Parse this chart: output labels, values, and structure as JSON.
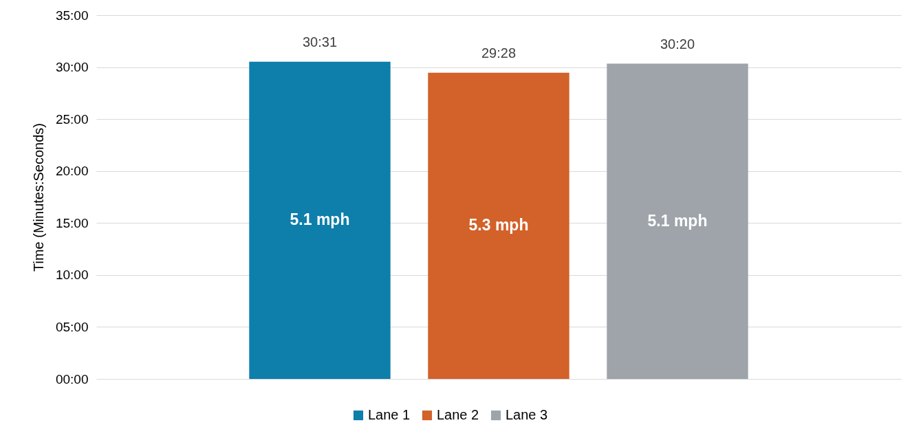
{
  "chart_data": {
    "type": "bar",
    "ylabel": "Time (Minutes:Seconds)",
    "categories": [
      null
    ],
    "series": [
      {
        "name": "Lane 1",
        "color": "#0e7eab",
        "values": [
          30.5167
        ],
        "value_labels": [
          "30:31"
        ]
      },
      {
        "name": "Lane 2",
        "color": "#d2612a",
        "values": [
          29.4667
        ],
        "value_labels": [
          "29:28"
        ]
      },
      {
        "name": "Lane 3",
        "color": "#9ea4aa",
        "values": [
          30.3333
        ],
        "value_labels": [
          "30:20"
        ]
      }
    ],
    "annotations": [
      "5.1 mph",
      "5.3 mph",
      "5.1 mph"
    ],
    "ylim": [
      0,
      35
    ],
    "yticks": [
      {
        "value": 0,
        "label": "00:00"
      },
      {
        "value": 5,
        "label": "05:00"
      },
      {
        "value": 10,
        "label": "10:00"
      },
      {
        "value": 15,
        "label": "15:00"
      },
      {
        "value": 20,
        "label": "20:00"
      },
      {
        "value": 25,
        "label": "25:00"
      },
      {
        "value": 30,
        "label": "30:00"
      },
      {
        "value": 35,
        "label": "35:00"
      }
    ],
    "grid": "y",
    "legend": "bottom",
    "tick_labels": "y"
  }
}
